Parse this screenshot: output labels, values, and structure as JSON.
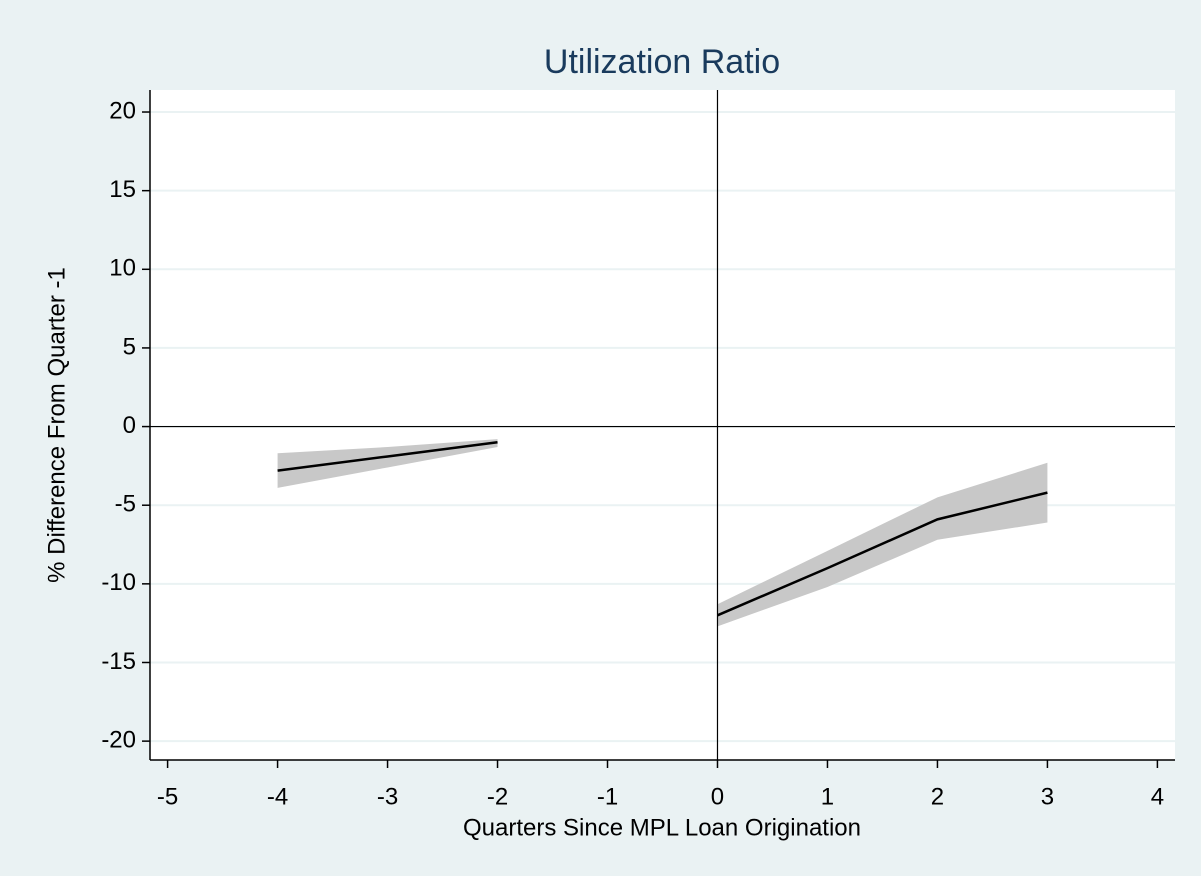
{
  "chart_data": {
    "type": "line",
    "title": "Utilization Ratio",
    "xlabel": "Quarters Since MPL Loan Origination",
    "ylabel": "% Difference From Quarter -1",
    "x": [
      -4,
      -3,
      -2,
      -1,
      0,
      1,
      2,
      3
    ],
    "values": [
      -2.8,
      -1.9,
      -1.0,
      null,
      -12.0,
      -9.0,
      -5.9,
      -4.2
    ],
    "ci_lower": [
      -3.9,
      -2.6,
      -1.3,
      null,
      -12.7,
      -10.2,
      -7.2,
      -6.1
    ],
    "ci_upper": [
      -1.7,
      -1.3,
      -0.8,
      null,
      -11.3,
      -7.9,
      -4.5,
      -2.3
    ],
    "color": "#000000",
    "band_color": "#c8c8c8",
    "xlim": [
      -5.16,
      4.16
    ],
    "ylim": [
      -21.2,
      21.4
    ],
    "xticks": [
      -5,
      -4,
      -3,
      -2,
      -1,
      0,
      1,
      2,
      3,
      4
    ],
    "yticks": [
      -20,
      -15,
      -10,
      -5,
      0,
      5,
      10,
      15,
      20
    ],
    "grid": true,
    "xline": 0,
    "yline": 0
  }
}
